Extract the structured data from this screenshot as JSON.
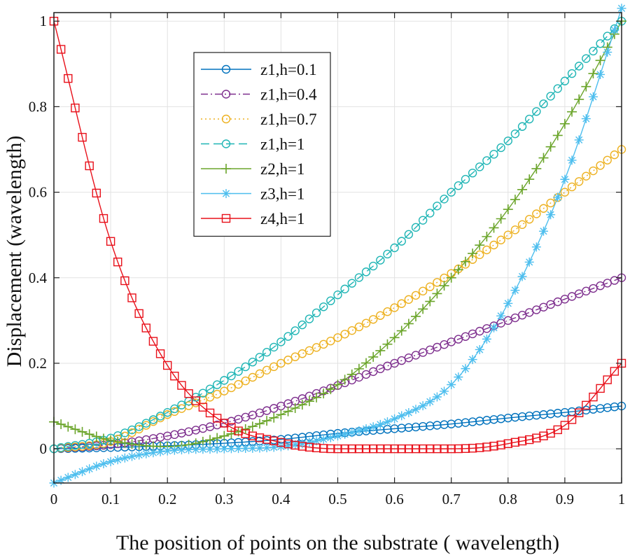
{
  "chart_data": {
    "type": "line",
    "title": "",
    "xlabel": "The position of points on the substrate ( wavelength)",
    "ylabel": "Displacement (wavelength)",
    "xlim": [
      0,
      1
    ],
    "ylim": [
      -0.08,
      1.02
    ],
    "grid": true,
    "legend_position": "top-left",
    "x_ticks": [
      0,
      0.1,
      0.2,
      0.3,
      0.4,
      0.5,
      0.6,
      0.7,
      0.8,
      0.9,
      1
    ],
    "x_tick_labels": [
      "0",
      "0.1",
      "0.2",
      "0.3",
      "0.4",
      "0.5",
      "0.6",
      "0.7",
      "0.8",
      "0.9",
      "1"
    ],
    "y_ticks": [
      0,
      0.2,
      0.4,
      0.6,
      0.8,
      1
    ],
    "y_tick_labels": [
      "0",
      "0.2",
      "0.4",
      "0.6",
      "0.8",
      "1"
    ],
    "x": [
      0,
      0.1,
      0.2,
      0.3,
      0.4,
      0.5,
      0.6,
      0.7,
      0.8,
      0.9,
      1
    ],
    "series": [
      {
        "name": "z1,h=0.1",
        "color": "#0072BD",
        "dash": "solid",
        "marker": "circle",
        "values": [
          0,
          0.003,
          0.007,
          0.013,
          0.022,
          0.036,
          0.047,
          0.058,
          0.072,
          0.085,
          0.1
        ]
      },
      {
        "name": "z1,h=0.4",
        "color": "#7E2F8E",
        "dash": "dashdot",
        "marker": "circle",
        "values": [
          0,
          0.01,
          0.03,
          0.06,
          0.1,
          0.148,
          0.2,
          0.25,
          0.3,
          0.35,
          0.4
        ]
      },
      {
        "name": "z1,h=0.7",
        "color": "#EDB120",
        "dash": "dotted",
        "marker": "circle",
        "values": [
          0,
          0.017,
          0.08,
          0.135,
          0.2,
          0.26,
          0.33,
          0.41,
          0.5,
          0.6,
          0.7
        ]
      },
      {
        "name": "z1,h=1",
        "color": "#1FB5B5",
        "dash": "dashed",
        "marker": "circle",
        "values": [
          0,
          0.025,
          0.085,
          0.16,
          0.25,
          0.36,
          0.47,
          0.6,
          0.72,
          0.86,
          1.0
        ]
      },
      {
        "name": "z2,h=1",
        "color": "#6BA52B",
        "dash": "solid",
        "marker": "plus",
        "values": [
          0.063,
          0.02,
          0.005,
          0.03,
          0.08,
          0.15,
          0.26,
          0.4,
          0.56,
          0.76,
          1.0
        ]
      },
      {
        "name": "z3,h=1",
        "color": "#4DBEEE",
        "dash": "solid",
        "marker": "star",
        "values": [
          -0.08,
          -0.03,
          -0.005,
          0.0,
          0.005,
          0.03,
          0.07,
          0.15,
          0.34,
          0.63,
          1.03
        ]
      },
      {
        "name": "z4,h=1",
        "color": "#E8101A",
        "dash": "solid",
        "marker": "square",
        "values": [
          1.0,
          0.485,
          0.195,
          0.06,
          0.015,
          0.0,
          0.0,
          0.0,
          0.012,
          0.055,
          0.2
        ]
      }
    ]
  }
}
